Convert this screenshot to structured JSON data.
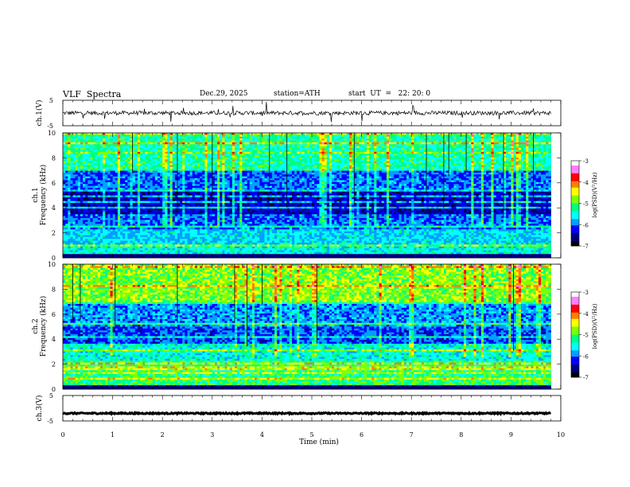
{
  "header": {
    "title": "VLF  Spectra",
    "date": "Dec.29, 2025",
    "station": "station=ATH",
    "start": "start  UT  =   22: 20: 0"
  },
  "panels": {
    "ch1v": {
      "ylabel": "ch.1(V)",
      "ticks": [
        "5",
        "-5"
      ]
    },
    "spec1": {
      "ylabel_line1": "ch.1",
      "ylabel_line2": "Frequency (kHz)",
      "ticks": [
        "10",
        "8",
        "6",
        "4",
        "2",
        "0"
      ],
      "colorbar": {
        "label": "log(PSD)(V²/Hz)",
        "ticks": [
          "-3",
          "-4",
          "-5",
          "-6",
          "-7"
        ]
      }
    },
    "spec2": {
      "ylabel_line1": "ch.2",
      "ylabel_line2": "Frequency (kHz)",
      "ticks": [
        "10",
        "8",
        "6",
        "4",
        "2",
        "0"
      ],
      "colorbar": {
        "label": "log(PSD)(V²/Hz)",
        "ticks": [
          "-3",
          "-4",
          "-5",
          "-6",
          "-7"
        ]
      }
    },
    "ch3v": {
      "ylabel": "ch.3(V)",
      "ticks": [
        "5",
        "-5"
      ]
    }
  },
  "xaxis": {
    "label": "Time  (min)",
    "ticks": [
      "0",
      "1",
      "2",
      "3",
      "4",
      "5",
      "6",
      "7",
      "8",
      "9",
      "10"
    ]
  },
  "colormap": [
    "#000000",
    "#00007f",
    "#0000ff",
    "#00a0ff",
    "#00ffff",
    "#00ff80",
    "#80ff00",
    "#ffff00",
    "#ff8000",
    "#ff0000",
    "#ff80ff",
    "#ffffff"
  ],
  "chart_data": [
    {
      "type": "line",
      "name": "ch.1(V)",
      "xlabel": "Time  (min)",
      "ylabel": "ch.1(V)",
      "xlim": [
        0,
        10
      ],
      "ylim": [
        -5,
        5
      ],
      "data_extent_min": 9.8,
      "mean_level": 0.0
    },
    {
      "type": "heatmap",
      "ylabel": "ch.1 Frequency (kHz)",
      "xlim": [
        0,
        10
      ],
      "ylim": [
        0,
        10
      ],
      "color_label": "log(PSD)(V²/Hz)",
      "color_range": [
        -7,
        -3
      ]
    },
    {
      "type": "heatmap",
      "ylabel": "ch.2 Frequency (kHz)",
      "xlim": [
        0,
        10
      ],
      "ylim": [
        0,
        10
      ],
      "color_label": "log(PSD)(V²/Hz)",
      "color_range": [
        -7,
        -3
      ]
    },
    {
      "type": "line",
      "name": "ch.3(V)",
      "xlabel": "Time  (min)",
      "ylabel": "ch.3(V)",
      "xlim": [
        0,
        10
      ],
      "ylim": [
        -5,
        5
      ],
      "data_extent_min": 9.8,
      "mean_level": -2.0
    }
  ]
}
